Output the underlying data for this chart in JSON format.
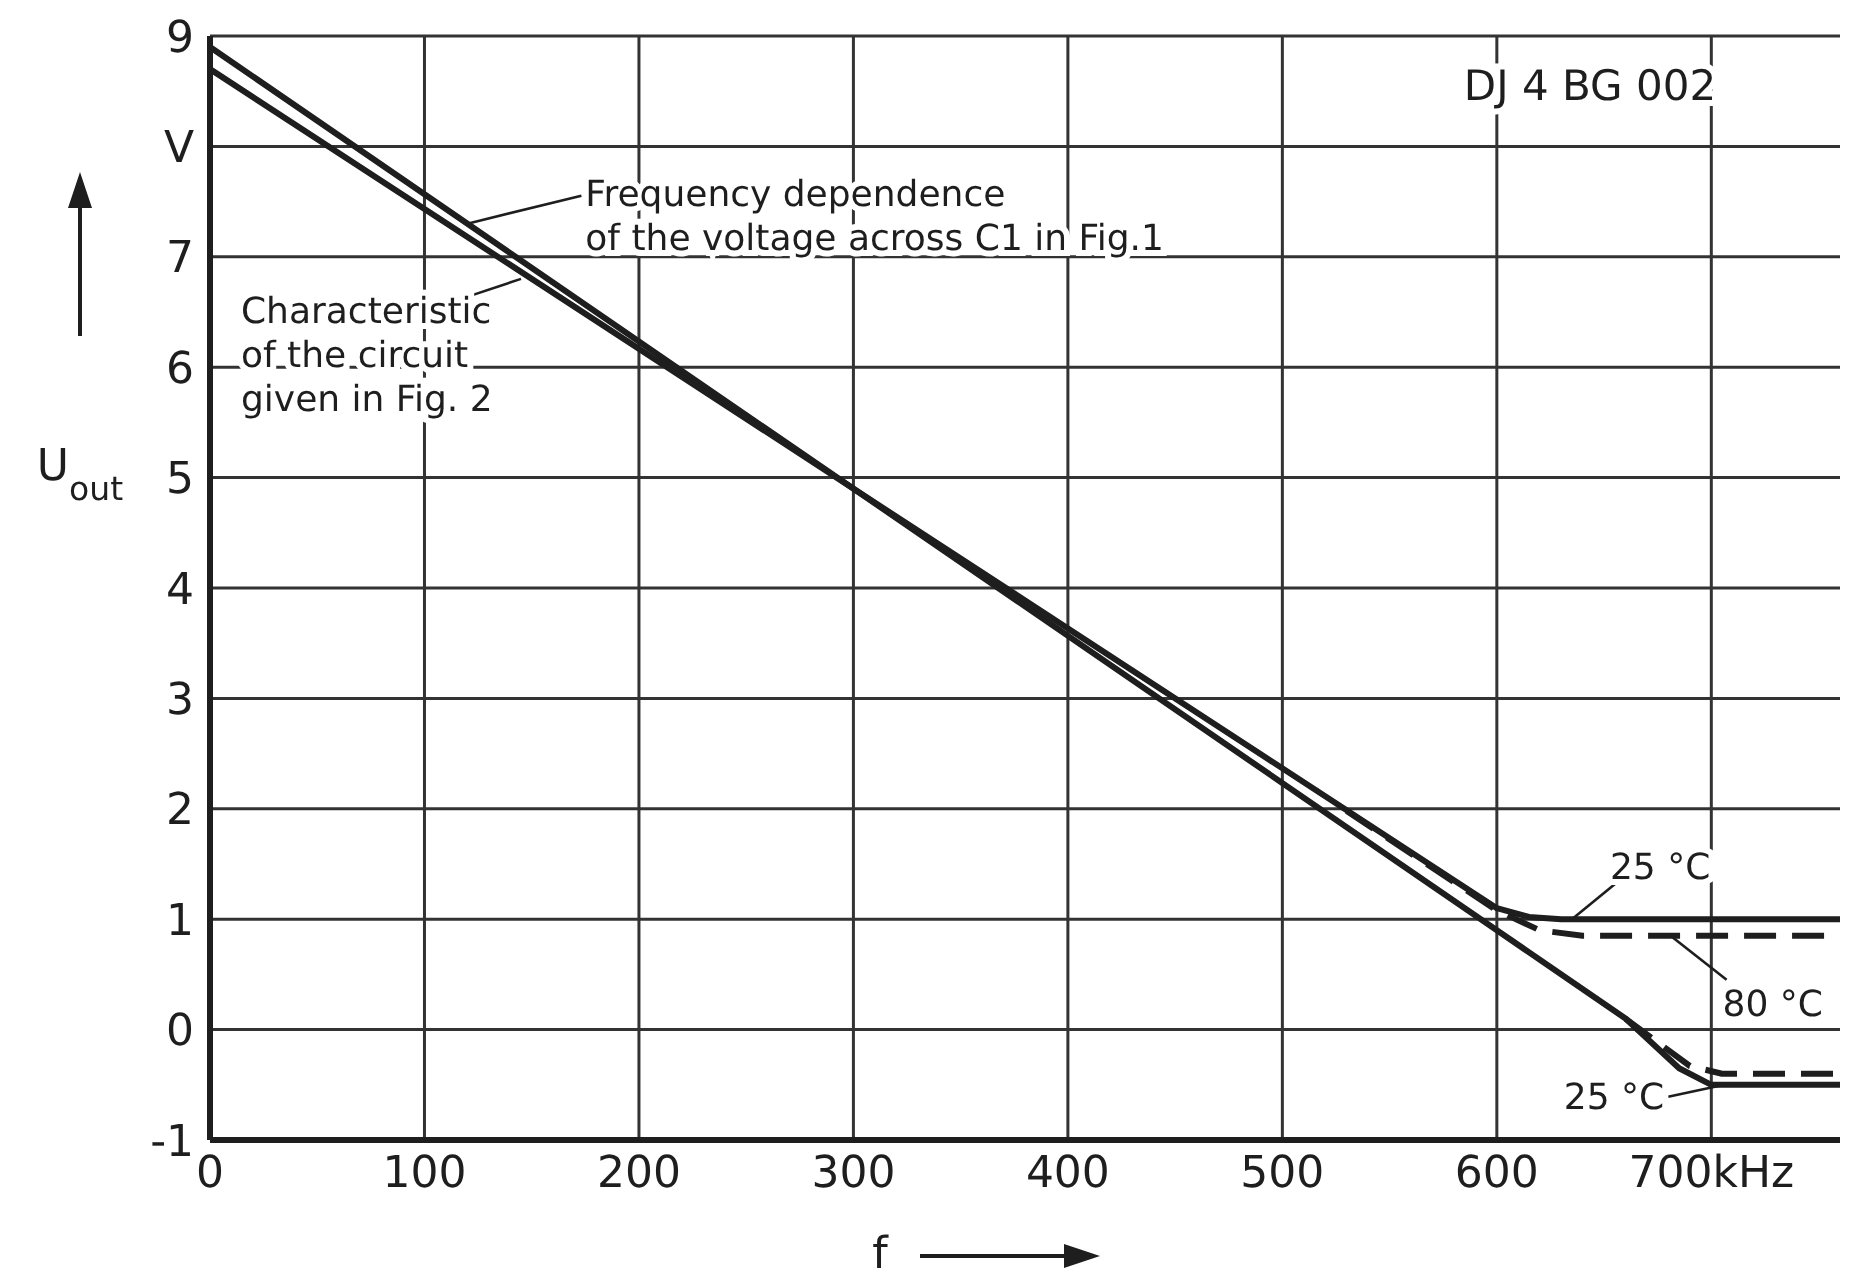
{
  "chart_data": {
    "type": "line",
    "xlabel": "f",
    "ylabel": "U$_{out}$",
    "xlim": [
      0,
      760
    ],
    "xticks": [
      0,
      100,
      200,
      300,
      400,
      500,
      600,
      {
        "value": 700,
        "label": "700kHz"
      }
    ],
    "ylim": [
      -1,
      9
    ],
    "yticks": [
      -1,
      0,
      1,
      2,
      3,
      4,
      5,
      6,
      7,
      {
        "value": 8,
        "label": "V"
      },
      9
    ],
    "grid": true,
    "series": [
      {
        "color": "#1e1e1e",
        "line_style": "solid",
        "x": [
          0,
          600,
          660,
          685,
          700,
          760
        ],
        "values": [
          8.9,
          0.9,
          0.1,
          -0.35,
          -0.5,
          -0.5
        ]
      },
      {
        "color": "#1e1e1e",
        "line_style": "dashed",
        "x": [
          660,
          690,
          705,
          760
        ],
        "values": [
          0.1,
          -0.33,
          -0.4,
          -0.4
        ]
      },
      {
        "color": "#1e1e1e",
        "line_style": "solid",
        "x": [
          0,
          600,
          615,
          630,
          760
        ],
        "values": [
          8.7,
          1.1,
          1.02,
          1.0,
          1.0
        ]
      },
      {
        "color": "#1e1e1e",
        "line_style": "dashed",
        "x": [
          530,
          600,
          620,
          640,
          760
        ],
        "values": [
          1.98,
          1.08,
          0.9,
          0.85,
          0.85
        ]
      }
    ],
    "annotations": [
      {
        "text": "Frequency dependence\nof the voltage across C1 in Fig.1",
        "x": 120,
        "y": 7.3
      },
      {
        "text": "Characteristic\nof the circuit\ngiven in Fig. 2",
        "x": 145,
        "y": 6.8
      },
      {
        "text": "25 °C",
        "x": 635,
        "y": 1.0
      },
      {
        "text": "80 °C",
        "x": 681,
        "y": 0.85
      },
      {
        "text": "25 °C",
        "x": 706,
        "y": -0.5
      },
      "DJ 4 BG 002"
    ]
  }
}
